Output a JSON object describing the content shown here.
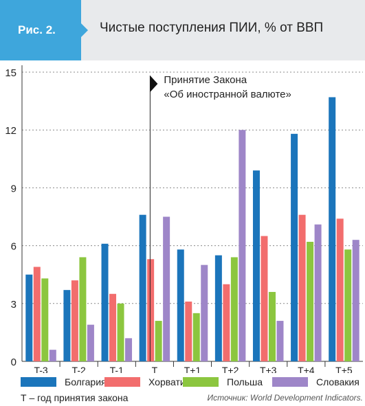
{
  "figure": {
    "tag": "Рис. 2.",
    "title": "Чистые поступления ПИИ, % от ВВП",
    "source": "Источник: World Development Indicators.",
    "footnote": "Т – год принятия закона",
    "colors": {
      "tag_bg": "#3ea6dc",
      "header_bg": "#e8eaec"
    }
  },
  "chart_data": {
    "type": "bar",
    "title": "Чистые поступления ПИИ, % от ВВП",
    "categories": [
      "T-3",
      "T-2",
      "T-1",
      "T",
      "T+1",
      "T+2",
      "T+3",
      "T+4",
      "T+5"
    ],
    "series": [
      {
        "name": "Болгария",
        "color": "#1b75bb",
        "values": [
          4.5,
          3.7,
          6.1,
          7.6,
          5.8,
          5.5,
          9.9,
          11.8,
          13.7
        ]
      },
      {
        "name": "Хорватия",
        "color": "#f26d6d",
        "values": [
          4.9,
          4.2,
          3.5,
          5.3,
          3.1,
          4.0,
          6.5,
          7.6,
          7.4
        ]
      },
      {
        "name": "Польша",
        "color": "#8cc63f",
        "values": [
          4.3,
          5.4,
          3.0,
          2.1,
          2.5,
          5.4,
          3.6,
          6.2,
          5.8
        ]
      },
      {
        "name": "Словакия",
        "color": "#9e86c8",
        "values": [
          0.6,
          1.9,
          1.2,
          7.5,
          5.0,
          12.0,
          2.1,
          7.1,
          6.3
        ]
      }
    ],
    "ylim": [
      0,
      15
    ],
    "yticks": [
      0,
      3,
      6,
      9,
      12,
      15
    ],
    "grid": true,
    "legend": "bottom",
    "annotation": {
      "category": "T",
      "lines": [
        "Принятие Закона",
        "«Об иностранной валюте»"
      ]
    }
  }
}
